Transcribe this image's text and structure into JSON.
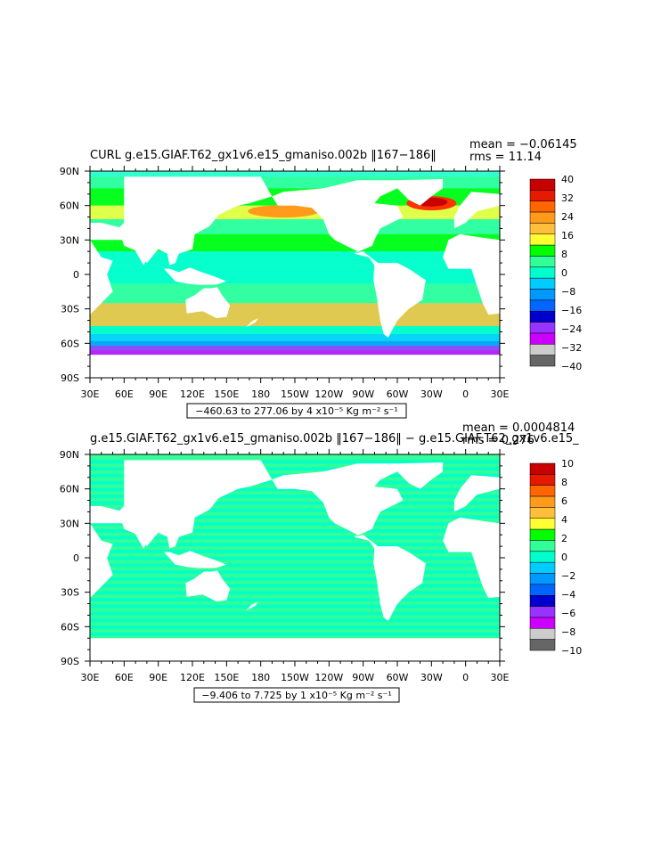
{
  "panels": [
    {
      "title": "CURL g.e15.GIAF.T62_gx1v6.e15_gmaniso.002b ‖167−186‖",
      "mean": "mean = −0.06145",
      "rms": "rms = 11.14",
      "caption": "−460.63 to 277.06 by 4 x10⁻⁵ Kg m⁻² s⁻¹",
      "colorbar_labels": [
        "40",
        "32",
        "24",
        "16",
        "8",
        "0",
        "−8",
        "−16",
        "−24",
        "−32",
        "−40"
      ],
      "colorbar_colors": [
        "#c80000",
        "#e61a00",
        "#ff6600",
        "#ff9a1a",
        "#ffbf3a",
        "#ffff33",
        "#00ff00",
        "#33ff99",
        "#00ffcc",
        "#00ccff",
        "#0099ff",
        "#0066ff",
        "#0000cc",
        "#9933ff",
        "#cc00ff",
        "#cccccc",
        "#666666"
      ],
      "ocean_color": "#33ffcc"
    },
    {
      "title": "g.e15.GIAF.T62_gx1v6.e15_gmaniso.002b ‖167−186‖ − g.e15.GIAF.T62_gx1v6.e15_",
      "mean": "mean = 0.0004814",
      "rms": "rms = 0.276",
      "caption": "−9.406 to 7.725 by 1 x10⁻⁵ Kg m⁻² s⁻¹",
      "colorbar_labels": [
        "10",
        "8",
        "6",
        "4",
        "2",
        "0",
        "−2",
        "−4",
        "−6",
        "−8",
        "−10"
      ],
      "colorbar_colors": [
        "#c80000",
        "#e61a00",
        "#ff6600",
        "#ff9a1a",
        "#ffbf3a",
        "#ffff33",
        "#00ff00",
        "#33ff99",
        "#00ffcc",
        "#00ccff",
        "#0099ff",
        "#0066ff",
        "#0000cc",
        "#9933ff",
        "#cc00ff",
        "#cccccc",
        "#666666"
      ],
      "ocean_color": "#33ff99"
    }
  ],
  "lat_labels": [
    "90N",
    "60N",
    "30N",
    "0",
    "30S",
    "60S",
    "90S"
  ],
  "lon_labels": [
    "30E",
    "60E",
    "90E",
    "120E",
    "150E",
    "180",
    "150W",
    "120W",
    "90W",
    "60W",
    "30W",
    "0",
    "30E"
  ]
}
